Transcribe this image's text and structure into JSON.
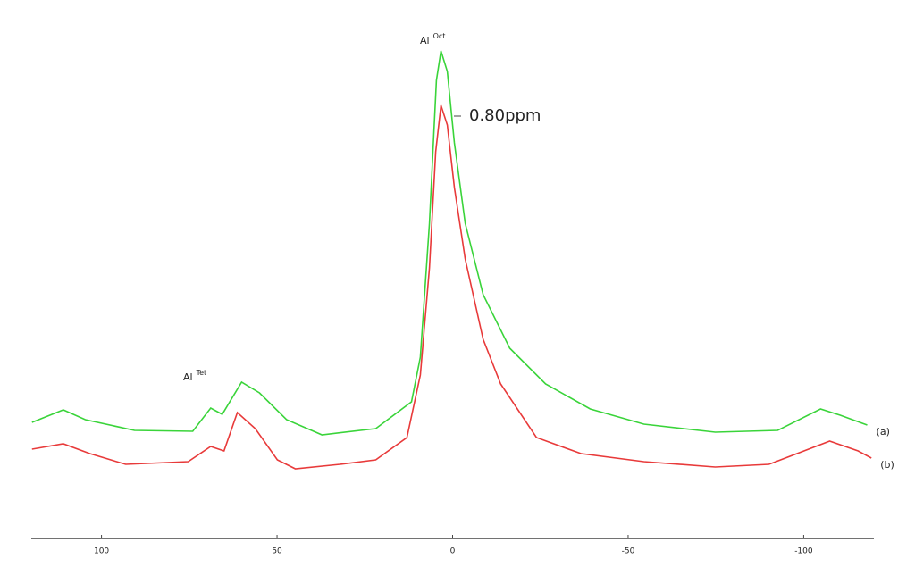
{
  "chart_data": {
    "type": "line",
    "xlim": [
      120,
      -120
    ],
    "ylim": [
      0,
      603
    ],
    "xticks": [
      100,
      50,
      0,
      -50,
      -100
    ],
    "series": [
      {
        "name": "(a)",
        "color": "#3ad43a",
        "x": [
          119.8,
          110.9,
          104.6,
          90.6,
          74.0,
          68.9,
          65.6,
          60.1,
          55.0,
          47.3,
          37.2,
          21.9,
          11.7,
          9.2,
          6.6,
          4.6,
          3.3,
          1.5,
          -0.5,
          -3.6,
          -8.7,
          -16.3,
          -26.5,
          -39.2,
          -54.5,
          -74.8,
          -92.6,
          -104.8,
          -110.4,
          -118.1
        ],
        "values": [
          130,
          144,
          133,
          121,
          120,
          146,
          139,
          175,
          163,
          133,
          116,
          123,
          153,
          203,
          353,
          513,
          546,
          523,
          443,
          353,
          273,
          213,
          173,
          145,
          128,
          119,
          121,
          145,
          138,
          127
        ]
      },
      {
        "name": "(b)",
        "color": "#e83a3a",
        "x": [
          119.8,
          110.9,
          103.3,
          93.1,
          75.3,
          68.9,
          65.1,
          61.3,
          56.2,
          49.9,
          44.8,
          32.1,
          21.9,
          13.0,
          9.2,
          6.6,
          4.8,
          3.3,
          1.5,
          -0.5,
          -3.6,
          -8.7,
          -13.7,
          -23.9,
          -36.6,
          -54.5,
          -74.8,
          -90.1,
          -107.4,
          -115.5,
          -119.3
        ],
        "values": [
          100,
          106,
          95,
          83,
          86,
          103,
          98,
          141,
          123,
          88,
          78,
          83,
          88,
          113,
          183,
          303,
          433,
          485,
          463,
          393,
          313,
          223,
          173,
          113,
          95,
          86,
          80,
          83,
          109,
          98,
          90
        ]
      }
    ],
    "annotations": [
      {
        "text": "Al",
        "sup": "Oct"
      },
      {
        "text": "Al",
        "sup": "Tet"
      },
      {
        "text": "0.80ppm"
      }
    ]
  }
}
